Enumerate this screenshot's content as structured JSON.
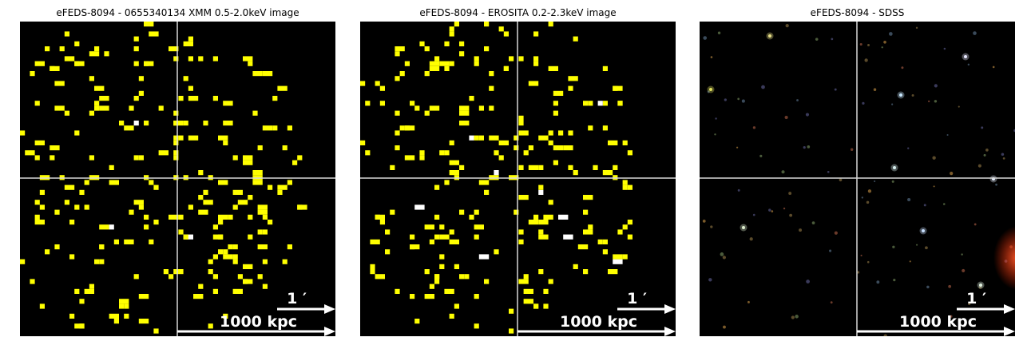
{
  "panels": [
    {
      "title": "eFEDS-8094 - 0655340134 XMM 0.5-2.0keV image",
      "type": "xray-pixels",
      "pixel_color": "#ffff00",
      "seed": 8094,
      "scale_arcmin_label": "1 ′",
      "scale_kpc_label": "1000 kpc"
    },
    {
      "title": "eFEDS-8094 -  EROSITA 0.2-2.3keV image",
      "type": "xray-pixels",
      "pixel_color": "#ffff00",
      "seed": 2349,
      "scale_arcmin_label": "1 ′",
      "scale_kpc_label": "1000 kpc"
    },
    {
      "title": "eFEDS-8094 - SDSS",
      "type": "optical",
      "seed": 5510,
      "scale_arcmin_label": "1 ′",
      "scale_kpc_label": "1000 kpc"
    }
  ],
  "colors": {
    "background": "#000000",
    "crosshair": "#d8d8d8",
    "scale_bar": "#ffffff",
    "highlight_pixel": "#ffffff"
  }
}
